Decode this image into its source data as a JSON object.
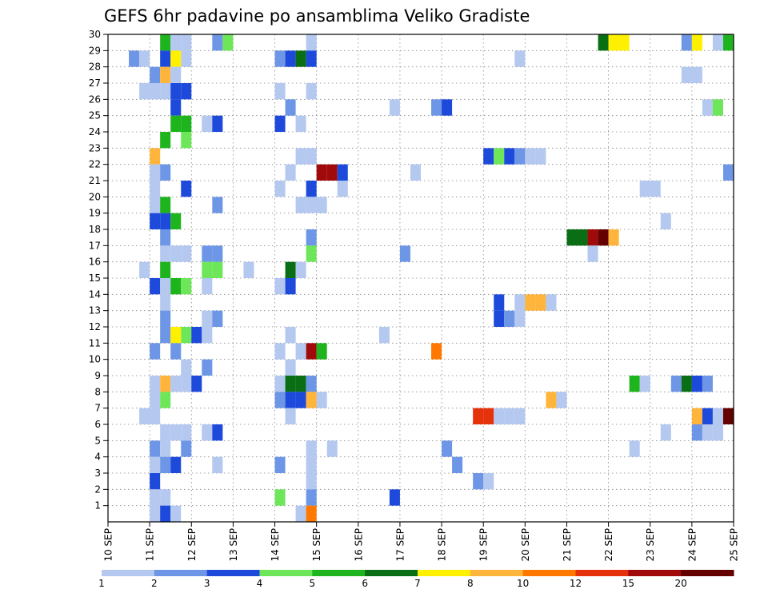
{
  "chart_data": {
    "type": "heatmap",
    "title": "GEFS 6hr padavine po ansamblima Veliko Gradiste",
    "xlabel": "",
    "ylabel": "",
    "x_axis": {
      "unit": "days",
      "range": [
        10,
        25
      ],
      "tick_labels": [
        "10 SEP",
        "11 SEP",
        "12 SEP",
        "13 SEP",
        "14 SEP",
        "15 SEP",
        "16 SEP",
        "17 SEP",
        "18 SEP",
        "19 SEP",
        "20 SEP",
        "21 SEP",
        "22 SEP",
        "23 SEP",
        "24 SEP",
        "25 SEP"
      ]
    },
    "y_axis": {
      "range": [
        0,
        30
      ],
      "tick_labels": [
        "1",
        "2",
        "3",
        "4",
        "5",
        "6",
        "7",
        "8",
        "9",
        "10",
        "11",
        "12",
        "13",
        "14",
        "15",
        "16",
        "17",
        "18",
        "19",
        "20",
        "21",
        "22",
        "23",
        "24",
        "25",
        "26",
        "27",
        "28",
        "29",
        "30"
      ]
    },
    "grid": "dotted",
    "colorbar": {
      "placement": "bottom",
      "labels": [
        "1",
        "2",
        "3",
        "4",
        "5",
        "6",
        "7",
        "8",
        "10",
        "12",
        "15",
        "20"
      ],
      "colors": [
        "#b4c8f0",
        "#6e96e6",
        "#1e4adc",
        "#6ee65a",
        "#1eb41e",
        "#0a6e14",
        "#fff000",
        "#ffb43c",
        "#ff7800",
        "#e6320a",
        "#a00a0a",
        "#640000"
      ]
    },
    "cell_width_days": 0.25,
    "cells": [
      {
        "m": 30,
        "t": 11.25,
        "c": 5
      },
      {
        "m": 30,
        "t": 11.5,
        "c": 1
      },
      {
        "m": 30,
        "t": 11.75,
        "c": 1
      },
      {
        "m": 30,
        "t": 12.5,
        "c": 2
      },
      {
        "m": 30,
        "t": 12.75,
        "c": 4
      },
      {
        "m": 30,
        "t": 14.75,
        "c": 1
      },
      {
        "m": 30,
        "t": 21.75,
        "c": 6
      },
      {
        "m": 30,
        "t": 22.0,
        "c": 7
      },
      {
        "m": 30,
        "t": 22.25,
        "c": 7
      },
      {
        "m": 30,
        "t": 23.75,
        "c": 2
      },
      {
        "m": 30,
        "t": 24.0,
        "c": 7
      },
      {
        "m": 30,
        "t": 24.5,
        "c": 1
      },
      {
        "m": 30,
        "t": 24.75,
        "c": 5
      },
      {
        "m": 29,
        "t": 10.5,
        "c": 2
      },
      {
        "m": 29,
        "t": 10.75,
        "c": 1
      },
      {
        "m": 29,
        "t": 11.25,
        "c": 3
      },
      {
        "m": 29,
        "t": 11.5,
        "c": 7
      },
      {
        "m": 29,
        "t": 11.75,
        "c": 1
      },
      {
        "m": 29,
        "t": 14.0,
        "c": 2
      },
      {
        "m": 29,
        "t": 14.25,
        "c": 3
      },
      {
        "m": 29,
        "t": 14.5,
        "c": 6
      },
      {
        "m": 29,
        "t": 14.75,
        "c": 3
      },
      {
        "m": 29,
        "t": 19.75,
        "c": 1
      },
      {
        "m": 28,
        "t": 11.0,
        "c": 2
      },
      {
        "m": 28,
        "t": 11.25,
        "c": 8
      },
      {
        "m": 28,
        "t": 11.5,
        "c": 1
      },
      {
        "m": 28,
        "t": 23.75,
        "c": 1
      },
      {
        "m": 28,
        "t": 24.0,
        "c": 1
      },
      {
        "m": 27,
        "t": 10.75,
        "c": 1
      },
      {
        "m": 27,
        "t": 11.0,
        "c": 1
      },
      {
        "m": 27,
        "t": 11.25,
        "c": 1
      },
      {
        "m": 27,
        "t": 11.5,
        "c": 3
      },
      {
        "m": 27,
        "t": 11.75,
        "c": 3
      },
      {
        "m": 27,
        "t": 14.0,
        "c": 1
      },
      {
        "m": 27,
        "t": 14.75,
        "c": 1
      },
      {
        "m": 26,
        "t": 11.5,
        "c": 3
      },
      {
        "m": 26,
        "t": 14.25,
        "c": 2
      },
      {
        "m": 26,
        "t": 16.75,
        "c": 1
      },
      {
        "m": 26,
        "t": 17.75,
        "c": 2
      },
      {
        "m": 26,
        "t": 18.0,
        "c": 3
      },
      {
        "m": 26,
        "t": 24.25,
        "c": 1
      },
      {
        "m": 26,
        "t": 24.5,
        "c": 4
      },
      {
        "m": 25,
        "t": 11.5,
        "c": 5
      },
      {
        "m": 25,
        "t": 11.75,
        "c": 5
      },
      {
        "m": 25,
        "t": 12.25,
        "c": 1
      },
      {
        "m": 25,
        "t": 12.5,
        "c": 3
      },
      {
        "m": 25,
        "t": 14.0,
        "c": 3
      },
      {
        "m": 25,
        "t": 14.5,
        "c": 1
      },
      {
        "m": 24,
        "t": 11.25,
        "c": 5
      },
      {
        "m": 24,
        "t": 11.75,
        "c": 4
      },
      {
        "m": 23,
        "t": 11.0,
        "c": 8
      },
      {
        "m": 23,
        "t": 14.5,
        "c": 1
      },
      {
        "m": 23,
        "t": 14.75,
        "c": 1
      },
      {
        "m": 23,
        "t": 19.0,
        "c": 3
      },
      {
        "m": 23,
        "t": 19.25,
        "c": 4
      },
      {
        "m": 23,
        "t": 19.5,
        "c": 3
      },
      {
        "m": 23,
        "t": 19.75,
        "c": 2
      },
      {
        "m": 23,
        "t": 20.0,
        "c": 1
      },
      {
        "m": 23,
        "t": 20.25,
        "c": 1
      },
      {
        "m": 22,
        "t": 11.0,
        "c": 1
      },
      {
        "m": 22,
        "t": 11.25,
        "c": 2
      },
      {
        "m": 22,
        "t": 14.25,
        "c": 1
      },
      {
        "m": 22,
        "t": 15.0,
        "c": 11
      },
      {
        "m": 22,
        "t": 15.25,
        "c": 11
      },
      {
        "m": 22,
        "t": 15.5,
        "c": 3
      },
      {
        "m": 22,
        "t": 17.25,
        "c": 1
      },
      {
        "m": 22,
        "t": 24.75,
        "c": 2
      },
      {
        "m": 21,
        "t": 11.0,
        "c": 1
      },
      {
        "m": 21,
        "t": 11.75,
        "c": 3
      },
      {
        "m": 21,
        "t": 14.0,
        "c": 1
      },
      {
        "m": 21,
        "t": 14.75,
        "c": 3
      },
      {
        "m": 21,
        "t": 15.5,
        "c": 1
      },
      {
        "m": 21,
        "t": 22.75,
        "c": 1
      },
      {
        "m": 21,
        "t": 23.0,
        "c": 1
      },
      {
        "m": 20,
        "t": 11.0,
        "c": 1
      },
      {
        "m": 20,
        "t": 11.25,
        "c": 5
      },
      {
        "m": 20,
        "t": 12.5,
        "c": 2
      },
      {
        "m": 20,
        "t": 14.5,
        "c": 1
      },
      {
        "m": 20,
        "t": 14.75,
        "c": 1
      },
      {
        "m": 20,
        "t": 15.0,
        "c": 1
      },
      {
        "m": 19,
        "t": 11.0,
        "c": 3
      },
      {
        "m": 19,
        "t": 11.25,
        "c": 3
      },
      {
        "m": 19,
        "t": 11.5,
        "c": 5
      },
      {
        "m": 19,
        "t": 23.25,
        "c": 1
      },
      {
        "m": 18,
        "t": 11.25,
        "c": 2
      },
      {
        "m": 18,
        "t": 14.75,
        "c": 2
      },
      {
        "m": 18,
        "t": 21.0,
        "c": 6
      },
      {
        "m": 18,
        "t": 21.25,
        "c": 6
      },
      {
        "m": 18,
        "t": 21.5,
        "c": 11
      },
      {
        "m": 18,
        "t": 21.75,
        "c": 12
      },
      {
        "m": 18,
        "t": 22.0,
        "c": 8
      },
      {
        "m": 17,
        "t": 11.25,
        "c": 1
      },
      {
        "m": 17,
        "t": 11.5,
        "c": 1
      },
      {
        "m": 17,
        "t": 11.75,
        "c": 1
      },
      {
        "m": 17,
        "t": 12.25,
        "c": 2
      },
      {
        "m": 17,
        "t": 12.5,
        "c": 2
      },
      {
        "m": 17,
        "t": 14.75,
        "c": 4
      },
      {
        "m": 17,
        "t": 17.0,
        "c": 2
      },
      {
        "m": 17,
        "t": 21.5,
        "c": 1
      },
      {
        "m": 16,
        "t": 10.75,
        "c": 1
      },
      {
        "m": 16,
        "t": 11.25,
        "c": 5
      },
      {
        "m": 16,
        "t": 12.25,
        "c": 4
      },
      {
        "m": 16,
        "t": 12.5,
        "c": 4
      },
      {
        "m": 16,
        "t": 13.25,
        "c": 1
      },
      {
        "m": 16,
        "t": 14.25,
        "c": 6
      },
      {
        "m": 16,
        "t": 14.5,
        "c": 1
      },
      {
        "m": 15,
        "t": 11.0,
        "c": 3
      },
      {
        "m": 15,
        "t": 11.25,
        "c": 1
      },
      {
        "m": 15,
        "t": 11.5,
        "c": 5
      },
      {
        "m": 15,
        "t": 11.75,
        "c": 4
      },
      {
        "m": 15,
        "t": 12.25,
        "c": 1
      },
      {
        "m": 15,
        "t": 14.0,
        "c": 1
      },
      {
        "m": 15,
        "t": 14.25,
        "c": 3
      },
      {
        "m": 14,
        "t": 11.25,
        "c": 1
      },
      {
        "m": 14,
        "t": 19.25,
        "c": 3
      },
      {
        "m": 14,
        "t": 19.75,
        "c": 1
      },
      {
        "m": 14,
        "t": 20.0,
        "c": 8
      },
      {
        "m": 14,
        "t": 20.25,
        "c": 8
      },
      {
        "m": 14,
        "t": 20.5,
        "c": 1
      },
      {
        "m": 13,
        "t": 11.25,
        "c": 2
      },
      {
        "m": 13,
        "t": 12.25,
        "c": 1
      },
      {
        "m": 13,
        "t": 12.5,
        "c": 2
      },
      {
        "m": 13,
        "t": 19.25,
        "c": 3
      },
      {
        "m": 13,
        "t": 19.5,
        "c": 2
      },
      {
        "m": 13,
        "t": 19.75,
        "c": 1
      },
      {
        "m": 12,
        "t": 11.25,
        "c": 2
      },
      {
        "m": 12,
        "t": 11.5,
        "c": 7
      },
      {
        "m": 12,
        "t": 11.75,
        "c": 4
      },
      {
        "m": 12,
        "t": 12.0,
        "c": 3
      },
      {
        "m": 12,
        "t": 12.25,
        "c": 1
      },
      {
        "m": 12,
        "t": 14.25,
        "c": 1
      },
      {
        "m": 12,
        "t": 16.5,
        "c": 1
      },
      {
        "m": 11,
        "t": 11.0,
        "c": 2
      },
      {
        "m": 11,
        "t": 11.5,
        "c": 2
      },
      {
        "m": 11,
        "t": 14.0,
        "c": 1
      },
      {
        "m": 11,
        "t": 14.5,
        "c": 1
      },
      {
        "m": 11,
        "t": 14.75,
        "c": 11
      },
      {
        "m": 11,
        "t": 15.0,
        "c": 5
      },
      {
        "m": 11,
        "t": 17.75,
        "c": 9
      },
      {
        "m": 10,
        "t": 11.75,
        "c": 1
      },
      {
        "m": 10,
        "t": 12.25,
        "c": 2
      },
      {
        "m": 10,
        "t": 14.25,
        "c": 1
      },
      {
        "m": 9,
        "t": 11.0,
        "c": 1
      },
      {
        "m": 9,
        "t": 11.25,
        "c": 8
      },
      {
        "m": 9,
        "t": 11.5,
        "c": 1
      },
      {
        "m": 9,
        "t": 11.75,
        "c": 1
      },
      {
        "m": 9,
        "t": 12.0,
        "c": 3
      },
      {
        "m": 9,
        "t": 14.0,
        "c": 1
      },
      {
        "m": 9,
        "t": 14.25,
        "c": 6
      },
      {
        "m": 9,
        "t": 14.5,
        "c": 6
      },
      {
        "m": 9,
        "t": 14.75,
        "c": 2
      },
      {
        "m": 9,
        "t": 22.5,
        "c": 5
      },
      {
        "m": 9,
        "t": 22.75,
        "c": 1
      },
      {
        "m": 9,
        "t": 23.5,
        "c": 2
      },
      {
        "m": 9,
        "t": 23.75,
        "c": 6
      },
      {
        "m": 9,
        "t": 24.0,
        "c": 3
      },
      {
        "m": 9,
        "t": 24.25,
        "c": 2
      },
      {
        "m": 8,
        "t": 11.0,
        "c": 1
      },
      {
        "m": 8,
        "t": 11.25,
        "c": 4
      },
      {
        "m": 8,
        "t": 14.0,
        "c": 2
      },
      {
        "m": 8,
        "t": 14.25,
        "c": 3
      },
      {
        "m": 8,
        "t": 14.5,
        "c": 3
      },
      {
        "m": 8,
        "t": 14.75,
        "c": 8
      },
      {
        "m": 8,
        "t": 15.0,
        "c": 1
      },
      {
        "m": 8,
        "t": 20.5,
        "c": 8
      },
      {
        "m": 8,
        "t": 20.75,
        "c": 1
      },
      {
        "m": 7,
        "t": 10.75,
        "c": 1
      },
      {
        "m": 7,
        "t": 11.0,
        "c": 1
      },
      {
        "m": 7,
        "t": 14.25,
        "c": 1
      },
      {
        "m": 7,
        "t": 18.75,
        "c": 10
      },
      {
        "m": 7,
        "t": 19.0,
        "c": 10
      },
      {
        "m": 7,
        "t": 19.25,
        "c": 1
      },
      {
        "m": 7,
        "t": 19.5,
        "c": 1
      },
      {
        "m": 7,
        "t": 19.75,
        "c": 1
      },
      {
        "m": 7,
        "t": 24.0,
        "c": 8
      },
      {
        "m": 7,
        "t": 24.25,
        "c": 3
      },
      {
        "m": 7,
        "t": 24.5,
        "c": 1
      },
      {
        "m": 7,
        "t": 24.75,
        "c": 12
      },
      {
        "m": 6,
        "t": 11.25,
        "c": 1
      },
      {
        "m": 6,
        "t": 11.5,
        "c": 1
      },
      {
        "m": 6,
        "t": 11.75,
        "c": 1
      },
      {
        "m": 6,
        "t": 12.25,
        "c": 1
      },
      {
        "m": 6,
        "t": 12.5,
        "c": 3
      },
      {
        "m": 6,
        "t": 23.25,
        "c": 1
      },
      {
        "m": 6,
        "t": 24.0,
        "c": 2
      },
      {
        "m": 6,
        "t": 24.25,
        "c": 1
      },
      {
        "m": 6,
        "t": 24.5,
        "c": 1
      },
      {
        "m": 5,
        "t": 11.0,
        "c": 2
      },
      {
        "m": 5,
        "t": 11.25,
        "c": 1
      },
      {
        "m": 5,
        "t": 11.75,
        "c": 2
      },
      {
        "m": 5,
        "t": 14.75,
        "c": 1
      },
      {
        "m": 5,
        "t": 15.25,
        "c": 1
      },
      {
        "m": 5,
        "t": 18.0,
        "c": 2
      },
      {
        "m": 5,
        "t": 22.5,
        "c": 1
      },
      {
        "m": 4,
        "t": 11.0,
        "c": 1
      },
      {
        "m": 4,
        "t": 11.25,
        "c": 2
      },
      {
        "m": 4,
        "t": 11.5,
        "c": 3
      },
      {
        "m": 4,
        "t": 12.5,
        "c": 1
      },
      {
        "m": 4,
        "t": 14.0,
        "c": 2
      },
      {
        "m": 4,
        "t": 14.75,
        "c": 1
      },
      {
        "m": 4,
        "t": 18.25,
        "c": 2
      },
      {
        "m": 3,
        "t": 11.0,
        "c": 3
      },
      {
        "m": 3,
        "t": 14.75,
        "c": 1
      },
      {
        "m": 3,
        "t": 18.75,
        "c": 2
      },
      {
        "m": 3,
        "t": 19.0,
        "c": 1
      },
      {
        "m": 2,
        "t": 11.0,
        "c": 1
      },
      {
        "m": 2,
        "t": 11.25,
        "c": 1
      },
      {
        "m": 2,
        "t": 14.0,
        "c": 4
      },
      {
        "m": 2,
        "t": 14.75,
        "c": 2
      },
      {
        "m": 2,
        "t": 16.75,
        "c": 3
      },
      {
        "m": 1,
        "t": 11.0,
        "c": 1
      },
      {
        "m": 1,
        "t": 11.25,
        "c": 3
      },
      {
        "m": 1,
        "t": 11.5,
        "c": 1
      },
      {
        "m": 1,
        "t": 14.5,
        "c": 1
      },
      {
        "m": 1,
        "t": 14.75,
        "c": 9
      }
    ]
  }
}
